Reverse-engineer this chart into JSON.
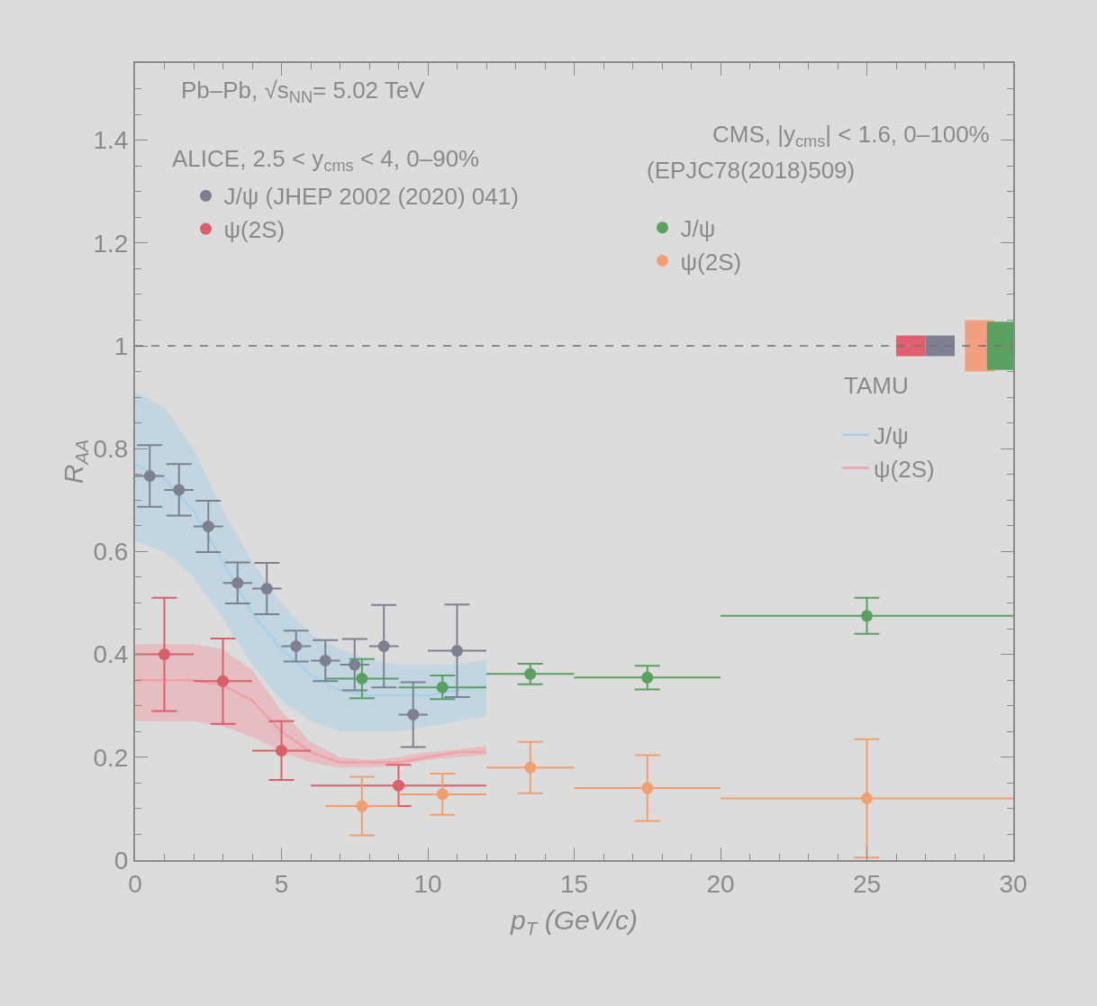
{
  "chart_data": {
    "type": "scatter",
    "xlabel": "p$_{T}$ (GeV/c)",
    "ylabel": "R$_{AA}$",
    "xlim": [
      0,
      30
    ],
    "xticks": [
      0,
      5,
      10,
      15,
      20,
      25,
      30
    ],
    "ylim": [
      0,
      1.55
    ],
    "yticks": [
      0,
      0.2,
      0.4,
      0.6,
      0.8,
      1,
      1.2,
      1.4
    ],
    "grid": false,
    "marker": "circle",
    "legend": "top left",
    "annotations": [
      "Pb–Pb, √s$_{NN}$= 5.02 TeV",
      "ALICE, 2.5 < y$_{cms}$ < 4, 0–90%",
      "CMS, |y$_{cms}$| < 1.6, 0–100%",
      "(EPJC78(2018)509)",
      "TAMU"
    ],
    "ref_lines": [
      {
        "axis": "y",
        "value": 1,
        "line_style": "dashed",
        "color": "#707070"
      }
    ],
    "series": [
      {
        "name": "J/ψ (JHEP 2002 (2020) 041)",
        "color": "#7d8090",
        "x": [
          0.5,
          1.5,
          2.5,
          3.5,
          4.5,
          5.5,
          6.5,
          7.5,
          8.5,
          9.5,
          11
        ],
        "values": [
          0.747,
          0.72,
          0.649,
          0.539,
          0.528,
          0.416,
          0.388,
          0.38,
          0.416,
          0.283,
          0.407
        ],
        "errors": [
          0.06,
          0.05,
          0.05,
          0.04,
          0.05,
          0.03,
          0.04,
          0.05,
          0.08,
          0.063,
          0.09
        ],
        "xerrors": [
          0.5,
          0.5,
          0.5,
          0.5,
          0.5,
          0.5,
          0.5,
          0.5,
          0.5,
          0.5,
          1
        ]
      },
      {
        "name": "ψ(2S)",
        "color": "#d9606a",
        "x": [
          1,
          3,
          5,
          9
        ],
        "values": [
          0.4,
          0.348,
          0.213,
          0.145
        ],
        "errors": [
          0.11,
          0.083,
          0.057,
          0.04
        ],
        "xerrors": [
          1,
          1,
          1,
          3
        ]
      },
      {
        "name": "J/ψ",
        "color": "#5aa060",
        "x": [
          7.75,
          10.5,
          13.5,
          17.5,
          25
        ],
        "values": [
          0.353,
          0.336,
          0.362,
          0.355,
          0.475
        ],
        "errors": [
          0.038,
          0.023,
          0.02,
          0.023,
          0.035
        ],
        "xerrors": [
          1.25,
          1.5,
          1.5,
          2.5,
          5
        ]
      },
      {
        "name": "ψ(2S)",
        "color": "#f0a070",
        "x": [
          7.75,
          10.5,
          13.5,
          17.5,
          25
        ],
        "values": [
          0.105,
          0.128,
          0.18,
          0.14,
          0.12
        ],
        "errors": [
          0.057,
          0.04,
          0.05,
          0.064,
          0.115
        ],
        "xerrors": [
          1.25,
          1.5,
          1.5,
          2.5,
          5
        ]
      },
      {
        "name": "J/ψ",
        "type": "line",
        "color": "#a8d0e8",
        "marker": "none",
        "x": [
          0,
          1,
          2,
          3,
          4,
          5,
          6,
          7,
          8,
          9,
          10,
          11,
          12
        ],
        "values": [
          0.77,
          0.74,
          0.68,
          0.58,
          0.48,
          0.41,
          0.36,
          0.33,
          0.32,
          0.32,
          0.32,
          0.33,
          0.34
        ],
        "lower": [
          0.62,
          0.6,
          0.55,
          0.47,
          0.38,
          0.31,
          0.27,
          0.25,
          0.25,
          0.25,
          0.26,
          0.27,
          0.28
        ],
        "upper": [
          0.91,
          0.88,
          0.8,
          0.68,
          0.58,
          0.5,
          0.44,
          0.41,
          0.39,
          0.38,
          0.38,
          0.38,
          0.39
        ]
      },
      {
        "name": "ψ(2S)",
        "type": "line",
        "color": "#f0a0a8",
        "marker": "none",
        "x": [
          0,
          1,
          2,
          3,
          4,
          5,
          6,
          7,
          8,
          9,
          10,
          11,
          12
        ],
        "values": [
          0.35,
          0.35,
          0.35,
          0.34,
          0.31,
          0.25,
          0.21,
          0.19,
          0.19,
          0.19,
          0.2,
          0.21,
          0.21
        ],
        "lower": [
          0.27,
          0.27,
          0.27,
          0.26,
          0.24,
          0.21,
          0.19,
          0.18,
          0.18,
          0.185,
          0.195,
          0.2,
          0.205
        ],
        "upper": [
          0.42,
          0.42,
          0.42,
          0.41,
          0.37,
          0.29,
          0.23,
          0.2,
          0.195,
          0.2,
          0.21,
          0.215,
          0.222
        ]
      },
      {
        "type": "bar",
        "x": [
          26.5,
          27.5,
          28.85,
          29.6
        ],
        "base": [
          0.98,
          0.98,
          0.95,
          0.953
        ],
        "values": [
          0.04,
          0.04,
          0.1,
          0.094
        ],
        "colors": [
          "#e06070",
          "#7d8090",
          "#f0a080",
          "#5aa060"
        ]
      }
    ]
  }
}
